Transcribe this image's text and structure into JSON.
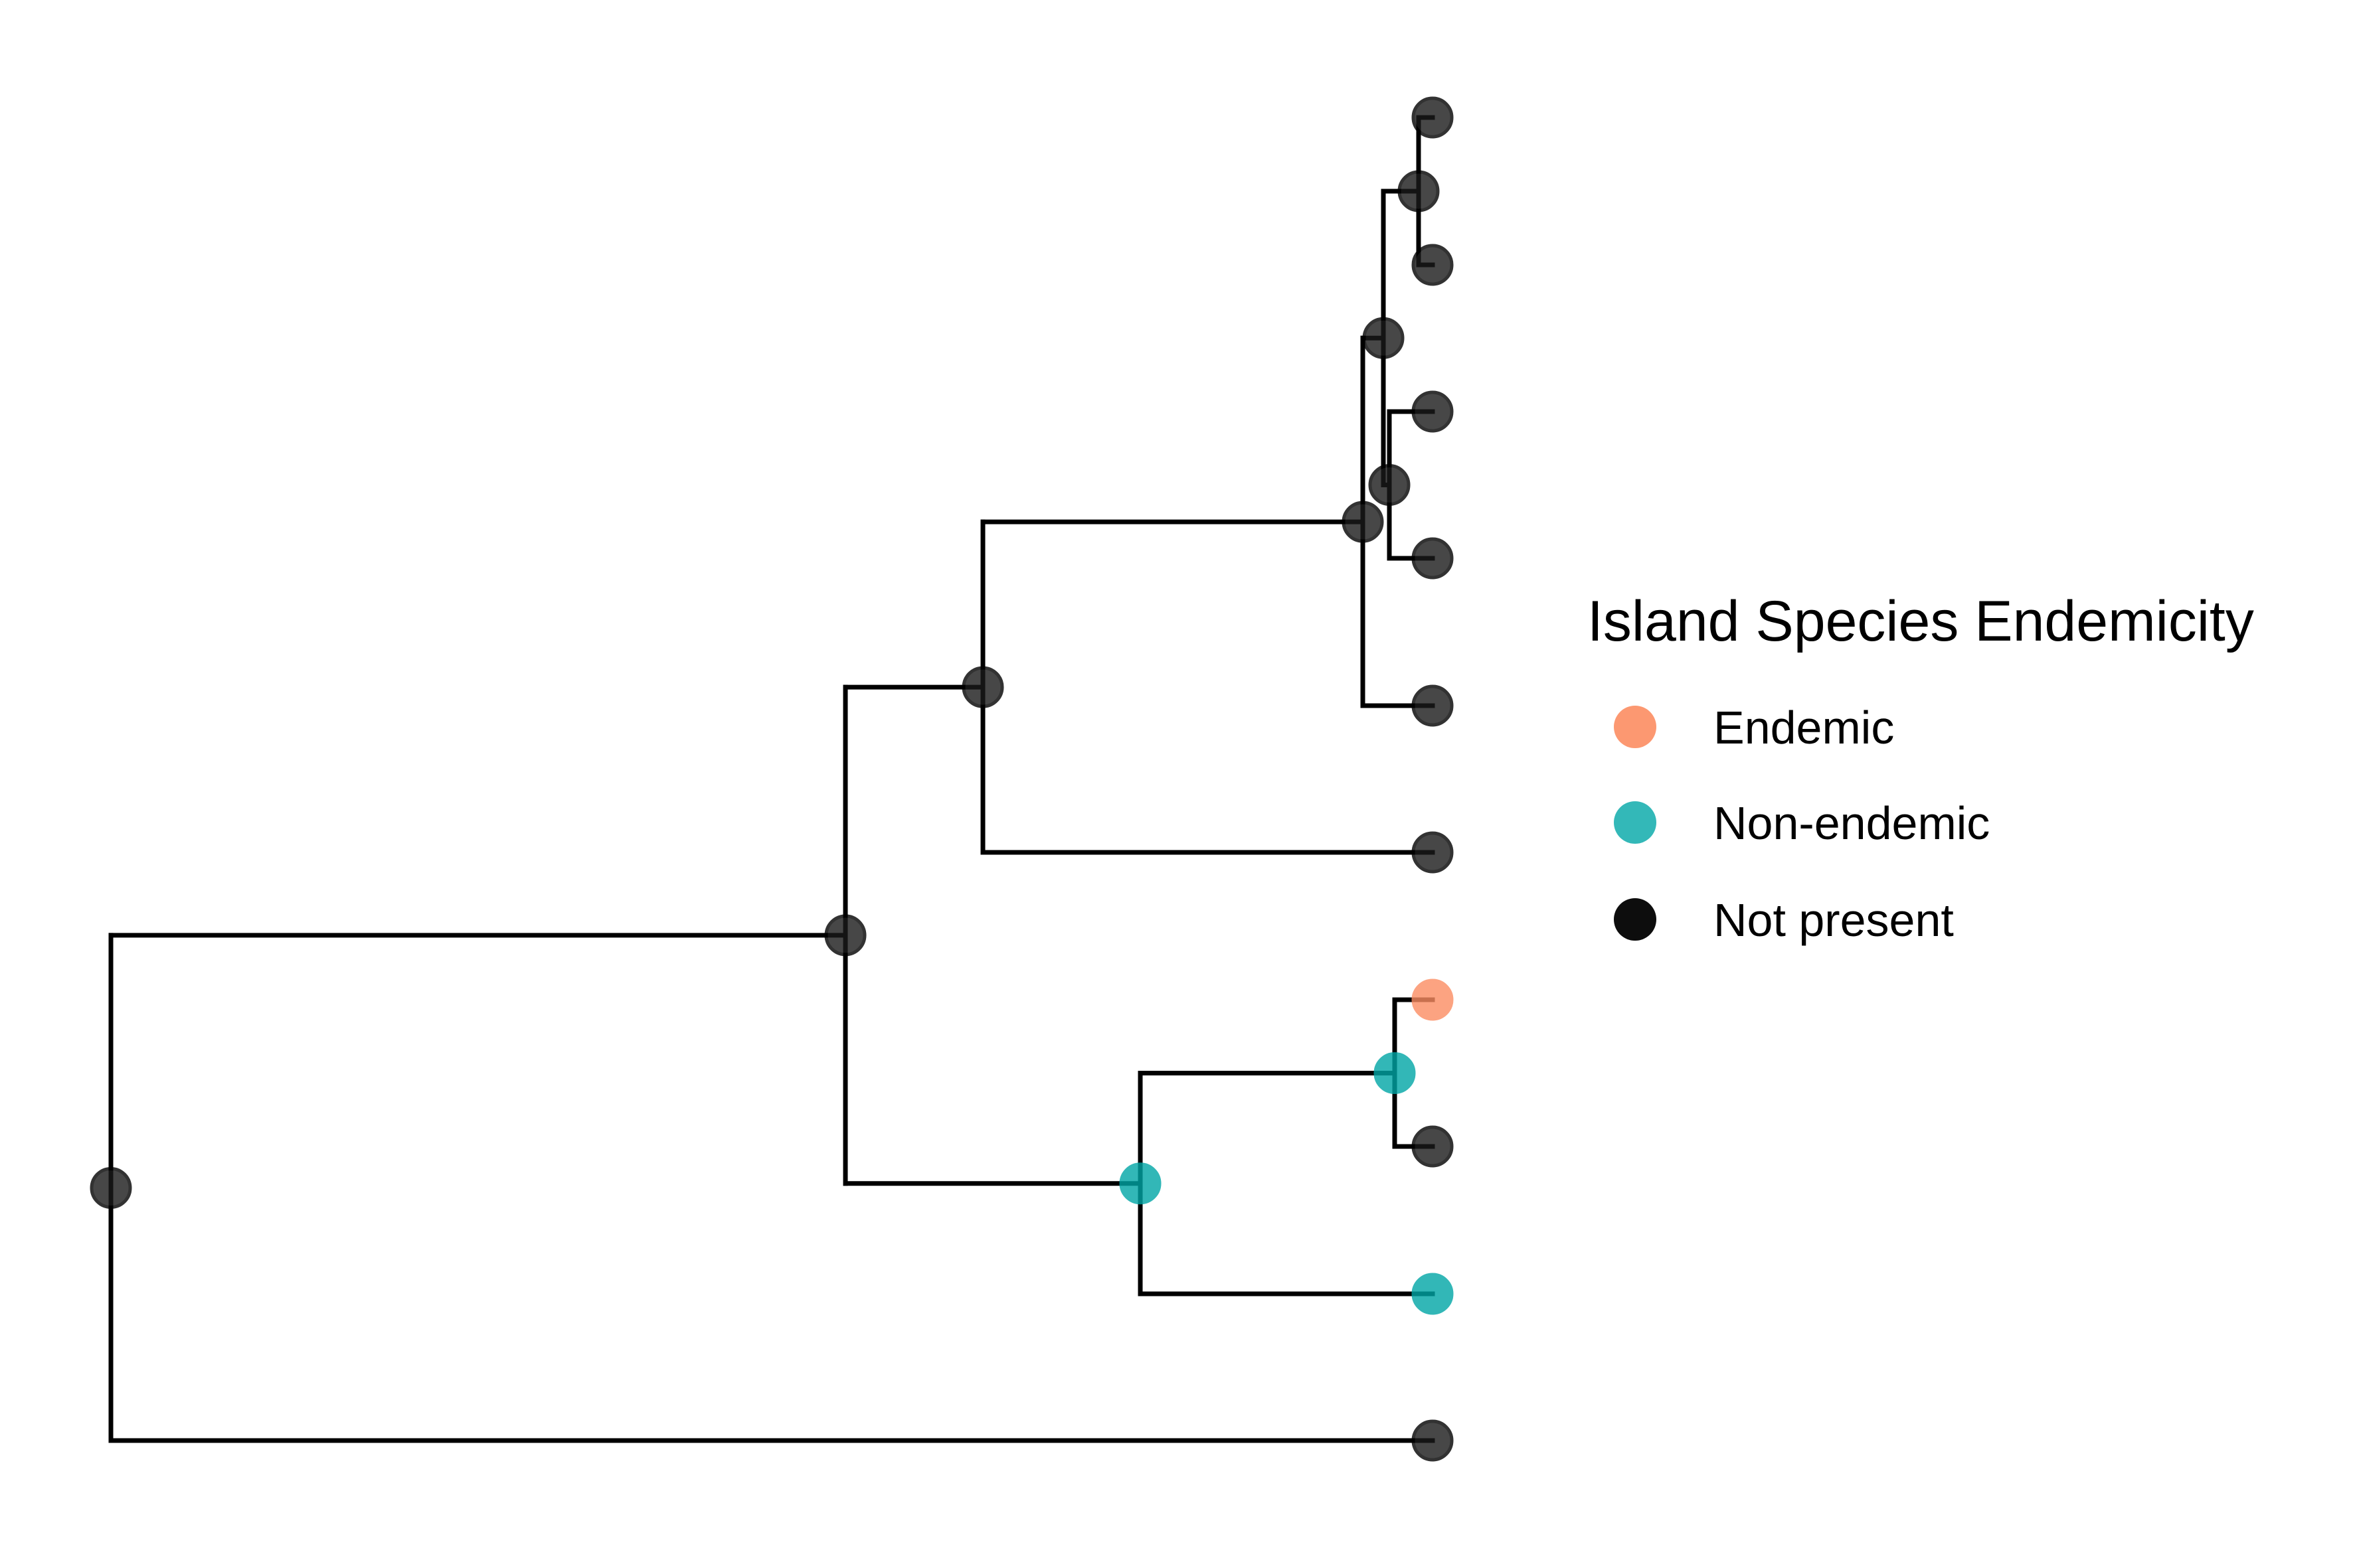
{
  "figure": {
    "type": "phylogenetic-tree",
    "tips": 10,
    "tip_states": [
      "Not present",
      "Not present",
      "Not present",
      "Not present",
      "Not present",
      "Not present",
      "Endemic",
      "Not present",
      "Non-endemic",
      "Not present"
    ],
    "internal_node_states": {
      "root": "Not present",
      "n1": "Not present",
      "n2": "Not present",
      "n3": "Not present",
      "n4": "Not present",
      "n5": "Not present",
      "n6": "Not present",
      "n7": "Non-endemic",
      "n8": "Non-endemic"
    }
  },
  "legend": {
    "title": "Island Species Endemicity",
    "items": [
      {
        "label": "Endemic",
        "color": "#FC8D62"
      },
      {
        "label": "Non-endemic",
        "color": "#00A6A6"
      },
      {
        "label": "Not present",
        "color": "#000000"
      }
    ]
  }
}
